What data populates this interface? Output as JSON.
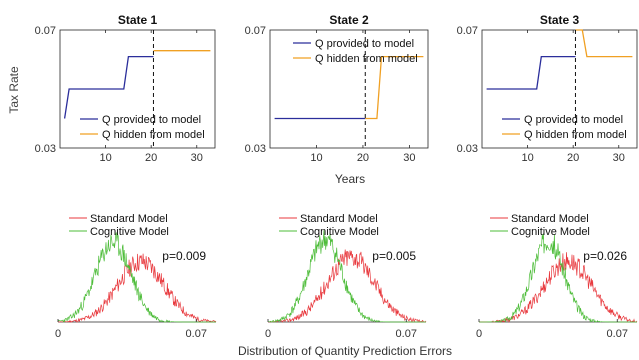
{
  "figure": {
    "top_ylabel": "Tax Rate",
    "top_xlabel": "Years",
    "bottom_xlabel": "Distribution of Quantity Prediction Errors"
  },
  "colors": {
    "provided": "#2b2e9b",
    "hidden": "#f0a023",
    "standard": "#e8383d",
    "cognitive": "#4cbc38",
    "axis": "#262626"
  },
  "chart_data": [
    {
      "type": "line",
      "panel": "top-1",
      "title": "State 1",
      "xlim": [
        0,
        34
      ],
      "ylim": [
        0.03,
        0.07
      ],
      "xticks": [
        10,
        20,
        30
      ],
      "yticks": [
        0.03,
        0.07
      ],
      "ytick_labels": [
        "0.03",
        "0.07"
      ],
      "show_yticklabels": true,
      "cutoff_year": 20.5,
      "legend_position": "bottom-right",
      "series": [
        {
          "name": "Q provided to model",
          "color_key": "provided",
          "x": [
            1,
            2,
            2,
            14,
            15,
            20.5
          ],
          "y": [
            0.04,
            0.05,
            0.05,
            0.05,
            0.061,
            0.061
          ]
        },
        {
          "name": "Q hidden from model",
          "color_key": "hidden",
          "x": [
            20.5,
            33
          ],
          "y": [
            0.063,
            0.063
          ]
        }
      ]
    },
    {
      "type": "line",
      "panel": "top-2",
      "title": "State 2",
      "xlim": [
        0,
        34
      ],
      "ylim": [
        0.03,
        0.07
      ],
      "xticks": [
        10,
        20,
        30
      ],
      "yticks": [
        0.03,
        0.07
      ],
      "ytick_labels": [
        "0.03",
        "0.07"
      ],
      "show_yticklabels": true,
      "cutoff_year": 20.5,
      "legend_position": "top-right",
      "series": [
        {
          "name": "Q provided to model",
          "color_key": "provided",
          "x": [
            1,
            20.5
          ],
          "y": [
            0.04,
            0.04
          ]
        },
        {
          "name": "Q hidden from model",
          "color_key": "hidden",
          "x": [
            20.5,
            23,
            24,
            33
          ],
          "y": [
            0.04,
            0.04,
            0.061,
            0.061
          ]
        }
      ]
    },
    {
      "type": "line",
      "panel": "top-3",
      "title": "State 3",
      "xlim": [
        0,
        34
      ],
      "ylim": [
        0.03,
        0.07
      ],
      "xticks": [
        10,
        20,
        30
      ],
      "yticks": [
        0.03,
        0.07
      ],
      "ytick_labels": [
        "0.03",
        "0.07"
      ],
      "show_yticklabels": true,
      "cutoff_year": 20.5,
      "legend_position": "bottom-right",
      "series": [
        {
          "name": "Q provided to model",
          "color_key": "provided",
          "x": [
            1,
            12,
            13,
            20.5
          ],
          "y": [
            0.05,
            0.05,
            0.061,
            0.061
          ]
        },
        {
          "name": "Q hidden from model",
          "color_key": "hidden",
          "x": [
            20.5,
            22,
            23,
            33
          ],
          "y": [
            0.07,
            0.07,
            0.061,
            0.061
          ]
        }
      ]
    },
    {
      "type": "area",
      "panel": "bottom-1",
      "annotation": "p=0.009",
      "xlim": [
        0,
        0.08
      ],
      "xticks": [
        0,
        0.07
      ],
      "xtick_labels": [
        "0",
        "0.07"
      ],
      "legend_position": "top-center",
      "series": [
        {
          "name": "Standard Model",
          "color_key": "standard",
          "mean": 0.042,
          "sd": 0.0118,
          "peak": 0.55,
          "seed": 11
        },
        {
          "name": "Cognitive Model",
          "color_key": "cognitive",
          "mean": 0.028,
          "sd": 0.009,
          "peak": 0.72,
          "seed": 23
        }
      ]
    },
    {
      "type": "area",
      "panel": "bottom-2",
      "annotation": "p=0.005",
      "xlim": [
        0,
        0.08
      ],
      "xticks": [
        0,
        0.07
      ],
      "xtick_labels": [
        "0",
        "0.07"
      ],
      "legend_position": "top-center",
      "series": [
        {
          "name": "Standard Model",
          "color_key": "standard",
          "mean": 0.042,
          "sd": 0.0118,
          "peak": 0.6,
          "seed": 37
        },
        {
          "name": "Cognitive Model",
          "color_key": "cognitive",
          "mean": 0.029,
          "sd": 0.0085,
          "peak": 0.75,
          "seed": 41
        }
      ]
    },
    {
      "type": "area",
      "panel": "bottom-3",
      "annotation": "p=0.026",
      "xlim": [
        0,
        0.08
      ],
      "xticks": [
        0,
        0.07
      ],
      "xtick_labels": [
        "0",
        "0.07"
      ],
      "legend_position": "top-center",
      "series": [
        {
          "name": "Standard Model",
          "color_key": "standard",
          "mean": 0.045,
          "sd": 0.0118,
          "peak": 0.55,
          "seed": 53
        },
        {
          "name": "Cognitive Model",
          "color_key": "cognitive",
          "mean": 0.035,
          "sd": 0.008,
          "peak": 0.75,
          "seed": 67
        }
      ]
    }
  ]
}
